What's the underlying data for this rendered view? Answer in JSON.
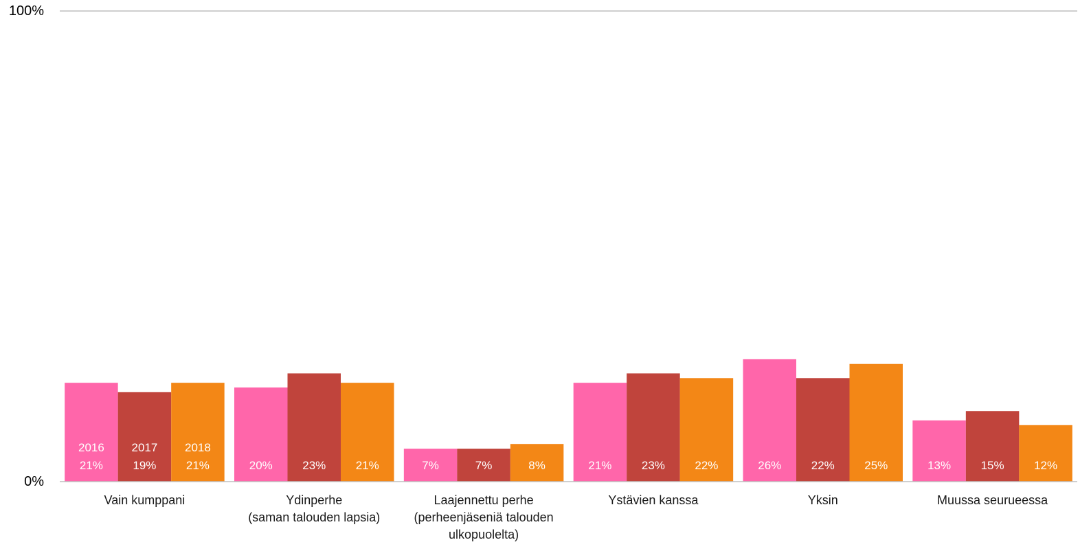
{
  "chart_data": {
    "type": "bar",
    "title": "",
    "xlabel": "",
    "ylabel": "",
    "ylim": [
      0,
      100
    ],
    "y_ticks": [
      "0%",
      "100%"
    ],
    "grid": false,
    "categories": [
      [
        "Vain kumppani"
      ],
      [
        "Ydinperhe",
        "(saman talouden lapsia)"
      ],
      [
        "Laajennettu perhe",
        "(perheenjäseniä talouden",
        "ulkopuolelta)"
      ],
      [
        "Ystävien kanssa"
      ],
      [
        "Yksin"
      ],
      [
        "Muussa seurueessa"
      ]
    ],
    "series": [
      {
        "name": "2016",
        "color": "#ff66aa",
        "values": [
          21,
          20,
          7,
          21,
          26,
          13
        ],
        "labels": [
          "21%",
          "20%",
          "7%",
          "21%",
          "26%",
          "13%"
        ]
      },
      {
        "name": "2017",
        "color": "#c0443c",
        "values": [
          19,
          23,
          7,
          23,
          22,
          15
        ],
        "labels": [
          "19%",
          "23%",
          "7%",
          "23%",
          "22%",
          "15%"
        ]
      },
      {
        "name": "2018",
        "color": "#f38716",
        "values": [
          21,
          21,
          8,
          22,
          25,
          12
        ],
        "labels": [
          "21%",
          "21%",
          "8%",
          "22%",
          "25%",
          "12%"
        ]
      }
    ],
    "legend_placement": "inside first category bars"
  }
}
